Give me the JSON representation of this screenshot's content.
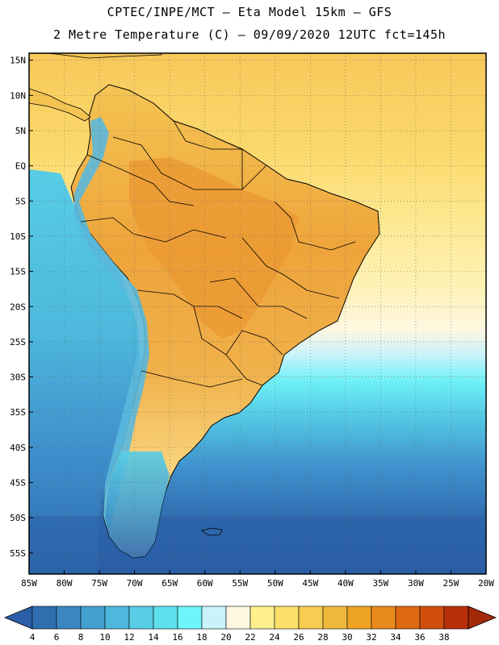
{
  "header": {
    "title_line1": "CPTEC/INPE/MCT –  Eta Model 15km – GFS",
    "title_line2": "2 Metre Temperature (C) – 09/09/2020 12UTC fct=145h"
  },
  "map": {
    "lat_labels": [
      "15N",
      "10N",
      "5N",
      "EQ",
      "5S",
      "10S",
      "15S",
      "20S",
      "25S",
      "30S",
      "35S",
      "40S",
      "45S",
      "50S",
      "55S"
    ],
    "lon_labels": [
      "85W",
      "80W",
      "75W",
      "70W",
      "65W",
      "60W",
      "55W",
      "50W",
      "45W",
      "40W",
      "35W",
      "30W",
      "25W",
      "20W"
    ],
    "lat_range": [
      16,
      -58
    ],
    "lon_range": [
      -85,
      -20
    ]
  },
  "colorbar": {
    "levels": [
      "4",
      "6",
      "8",
      "10",
      "12",
      "14",
      "16",
      "18",
      "20",
      "22",
      "24",
      "26",
      "28",
      "30",
      "32",
      "34",
      "36",
      "38"
    ],
    "colors": [
      "#2f6fb0",
      "#3a86c0",
      "#43a0cf",
      "#4db8dc",
      "#57cde6",
      "#5fe0ee",
      "#6ef5fb",
      "#c9f3fb",
      "#fff7e2",
      "#fdf08d",
      "#fadf6a",
      "#f6cc52",
      "#f0b93c",
      "#eea323",
      "#e88a1e",
      "#de6a12",
      "#cf4e0c",
      "#b8300a"
    ],
    "under_color": "#2a5ea6",
    "over_color": "#a3290a"
  },
  "colors": {
    "ocean_deep": "#2e67ad",
    "ocean_mid": "#3f8fcc",
    "ocean_light": "#53bfe0",
    "ocean_cyan": "#6ef0f8",
    "ocean_warm": "#fde78b",
    "land_warm": "#f3c150",
    "land_hot": "#eda23a",
    "andes": "#5ab8dc"
  }
}
